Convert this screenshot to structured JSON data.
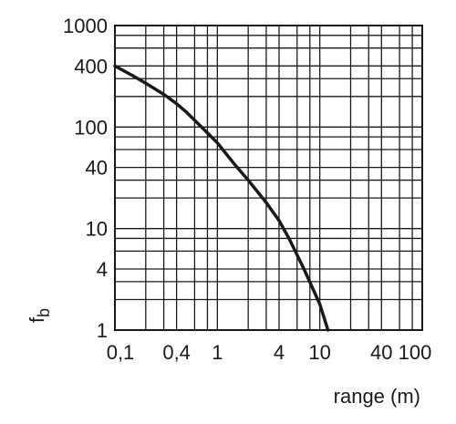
{
  "chart_data": {
    "type": "line",
    "title": "",
    "xlabel": "range (m)",
    "ylabel_main": "f",
    "ylabel_sub": "b",
    "x_scale": "log",
    "y_scale": "log",
    "xlim": [
      0.1,
      100
    ],
    "ylim": [
      1,
      1000
    ],
    "grid": true,
    "legend": "none",
    "x_ticks": [
      {
        "value": 0.1,
        "label": "0,1"
      },
      {
        "value": 0.4,
        "label": "0,4"
      },
      {
        "value": 1,
        "label": "1"
      },
      {
        "value": 4,
        "label": "4"
      },
      {
        "value": 10,
        "label": "10"
      },
      {
        "value": 40,
        "label": "40"
      },
      {
        "value": 100,
        "label": "100"
      }
    ],
    "y_ticks": [
      {
        "value": 1,
        "label": "1"
      },
      {
        "value": 4,
        "label": "4"
      },
      {
        "value": 10,
        "label": "10"
      },
      {
        "value": 40,
        "label": "40"
      },
      {
        "value": 100,
        "label": "100"
      },
      {
        "value": 400,
        "label": "400"
      },
      {
        "value": 1000,
        "label": "1000"
      }
    ],
    "x_grid": [
      0.1,
      0.2,
      0.3,
      0.4,
      0.6,
      0.8,
      1,
      2,
      3,
      4,
      6,
      8,
      10,
      20,
      30,
      40,
      60,
      80,
      100
    ],
    "y_grid": [
      1,
      2,
      3,
      4,
      6,
      8,
      10,
      20,
      30,
      40,
      60,
      80,
      100,
      200,
      300,
      400,
      600,
      800,
      1000
    ],
    "series": [
      {
        "x": [
          0.1,
          0.15,
          0.2,
          0.3,
          0.4,
          0.5,
          0.7,
          1,
          1.5,
          2,
          3,
          4,
          5,
          7,
          10,
          12
        ],
        "y": [
          400,
          320,
          270,
          210,
          170,
          140,
          100,
          70,
          42,
          30,
          18,
          12,
          8,
          4,
          1.8,
          1
        ]
      }
    ],
    "colors": {
      "line": "#1a1a1a",
      "grid": "#1a1a1a",
      "background": "#ffffff"
    }
  }
}
